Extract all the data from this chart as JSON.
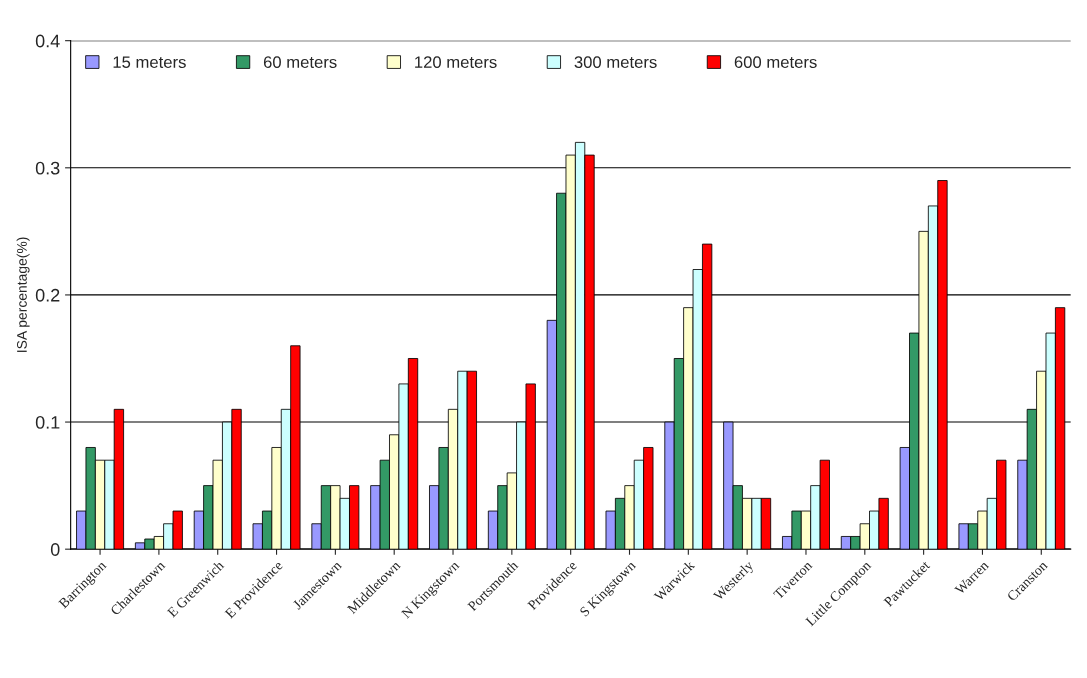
{
  "chart_data": {
    "type": "bar",
    "ylabel": "ISA percentage(%)",
    "categories": [
      "Barrington",
      "Charlestown",
      "E Greenwich",
      "E Providence",
      "Jamestown",
      "Middletown",
      "N Kingstown",
      "Portsmouth",
      "Providence",
      "S Kingstown",
      "Warwick",
      "Westerly",
      "Tiverton",
      "Little Compton",
      "Pawtucket",
      "Warren",
      "Cranston"
    ],
    "series": [
      {
        "name": "15 meters",
        "color": "#9999ff",
        "values": [
          0.03,
          0.005,
          0.03,
          0.02,
          0.02,
          0.05,
          0.05,
          0.03,
          0.18,
          0.03,
          0.1,
          0.1,
          0.01,
          0.01,
          0.08,
          0.02,
          0.07
        ]
      },
      {
        "name": "60 meters",
        "color": "#339966",
        "values": [
          0.08,
          0.008,
          0.05,
          0.03,
          0.05,
          0.07,
          0.08,
          0.05,
          0.28,
          0.04,
          0.15,
          0.05,
          0.03,
          0.01,
          0.17,
          0.02,
          0.11
        ]
      },
      {
        "name": "120 meters",
        "color": "#ffffcc",
        "values": [
          0.07,
          0.01,
          0.07,
          0.08,
          0.05,
          0.09,
          0.11,
          0.06,
          0.31,
          0.05,
          0.19,
          0.04,
          0.03,
          0.02,
          0.25,
          0.03,
          0.14
        ]
      },
      {
        "name": "300 meters",
        "color": "#ccffff",
        "values": [
          0.07,
          0.02,
          0.1,
          0.11,
          0.04,
          0.13,
          0.14,
          0.1,
          0.32,
          0.07,
          0.22,
          0.04,
          0.05,
          0.03,
          0.27,
          0.04,
          0.17
        ]
      },
      {
        "name": "600 meters",
        "color": "#ff0000",
        "values": [
          0.11,
          0.03,
          0.11,
          0.16,
          0.05,
          0.15,
          0.14,
          0.13,
          0.31,
          0.08,
          0.24,
          0.04,
          0.07,
          0.04,
          0.29,
          0.07,
          0.19
        ]
      }
    ],
    "ylim": [
      0,
      0.4
    ],
    "yticks": [
      0,
      0.1,
      0.2,
      0.3,
      0.4
    ],
    "grid": "y",
    "legend": "top left"
  }
}
